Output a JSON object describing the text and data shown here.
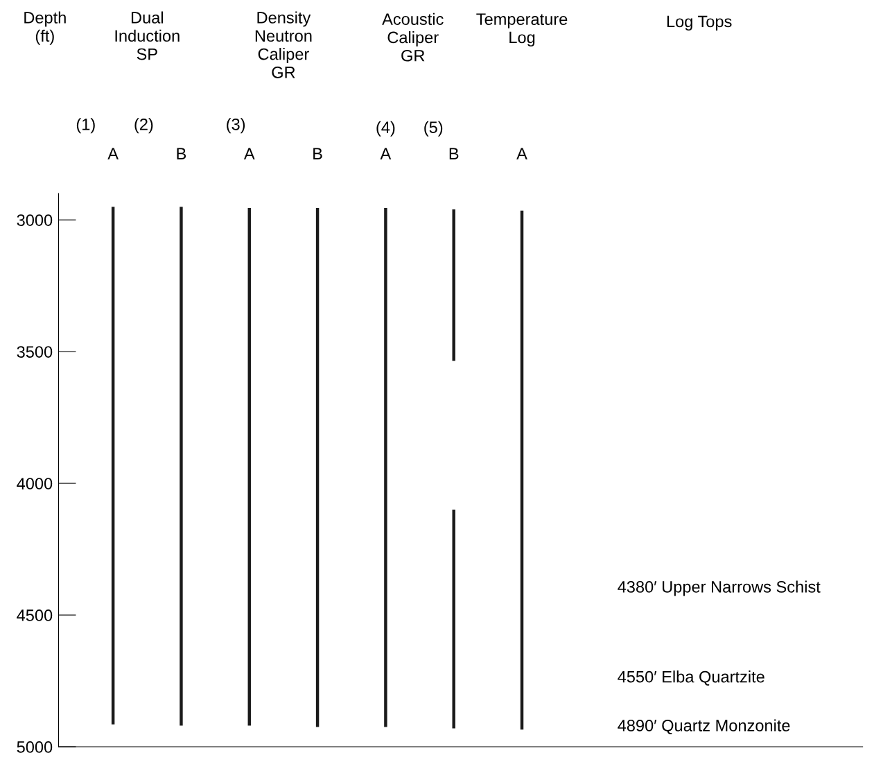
{
  "chart_data": {
    "type": "bar",
    "categories": [
      "A",
      "B",
      "A",
      "B",
      "A",
      "B",
      "A"
    ],
    "series": [
      {
        "color": "#1a1a1a",
        "base": [
          2950,
          2950,
          2955,
          2955,
          2955,
          2960,
          2965
        ],
        "values": [
          1965,
          1970,
          1965,
          1970,
          1970,
          575,
          1970
        ]
      },
      {
        "color": "#1a1a1a",
        "base": [
          null,
          null,
          null,
          null,
          null,
          4100,
          null
        ],
        "values": [
          null,
          null,
          null,
          null,
          null,
          830,
          null
        ]
      }
    ],
    "ylim": [
      5000,
      2900
    ],
    "yticks": [
      3000,
      3500,
      4000,
      4500,
      5000
    ],
    "grid": false,
    "annotations": [
      "Depth\n(ft)",
      "Dual\nInduction\nSP",
      "Density\nNeutron\nCaliper\nGR",
      "Acoustic\nCaliper\nGR",
      "Temperature\nLog",
      "Log Tops",
      "(1)",
      "(2)",
      "(3)",
      "(4)",
      "(5)",
      "4380′ Upper Narrows Schist",
      "4550′ Elba Quartzite",
      "4890′ Quartz Monzonite"
    ]
  }
}
